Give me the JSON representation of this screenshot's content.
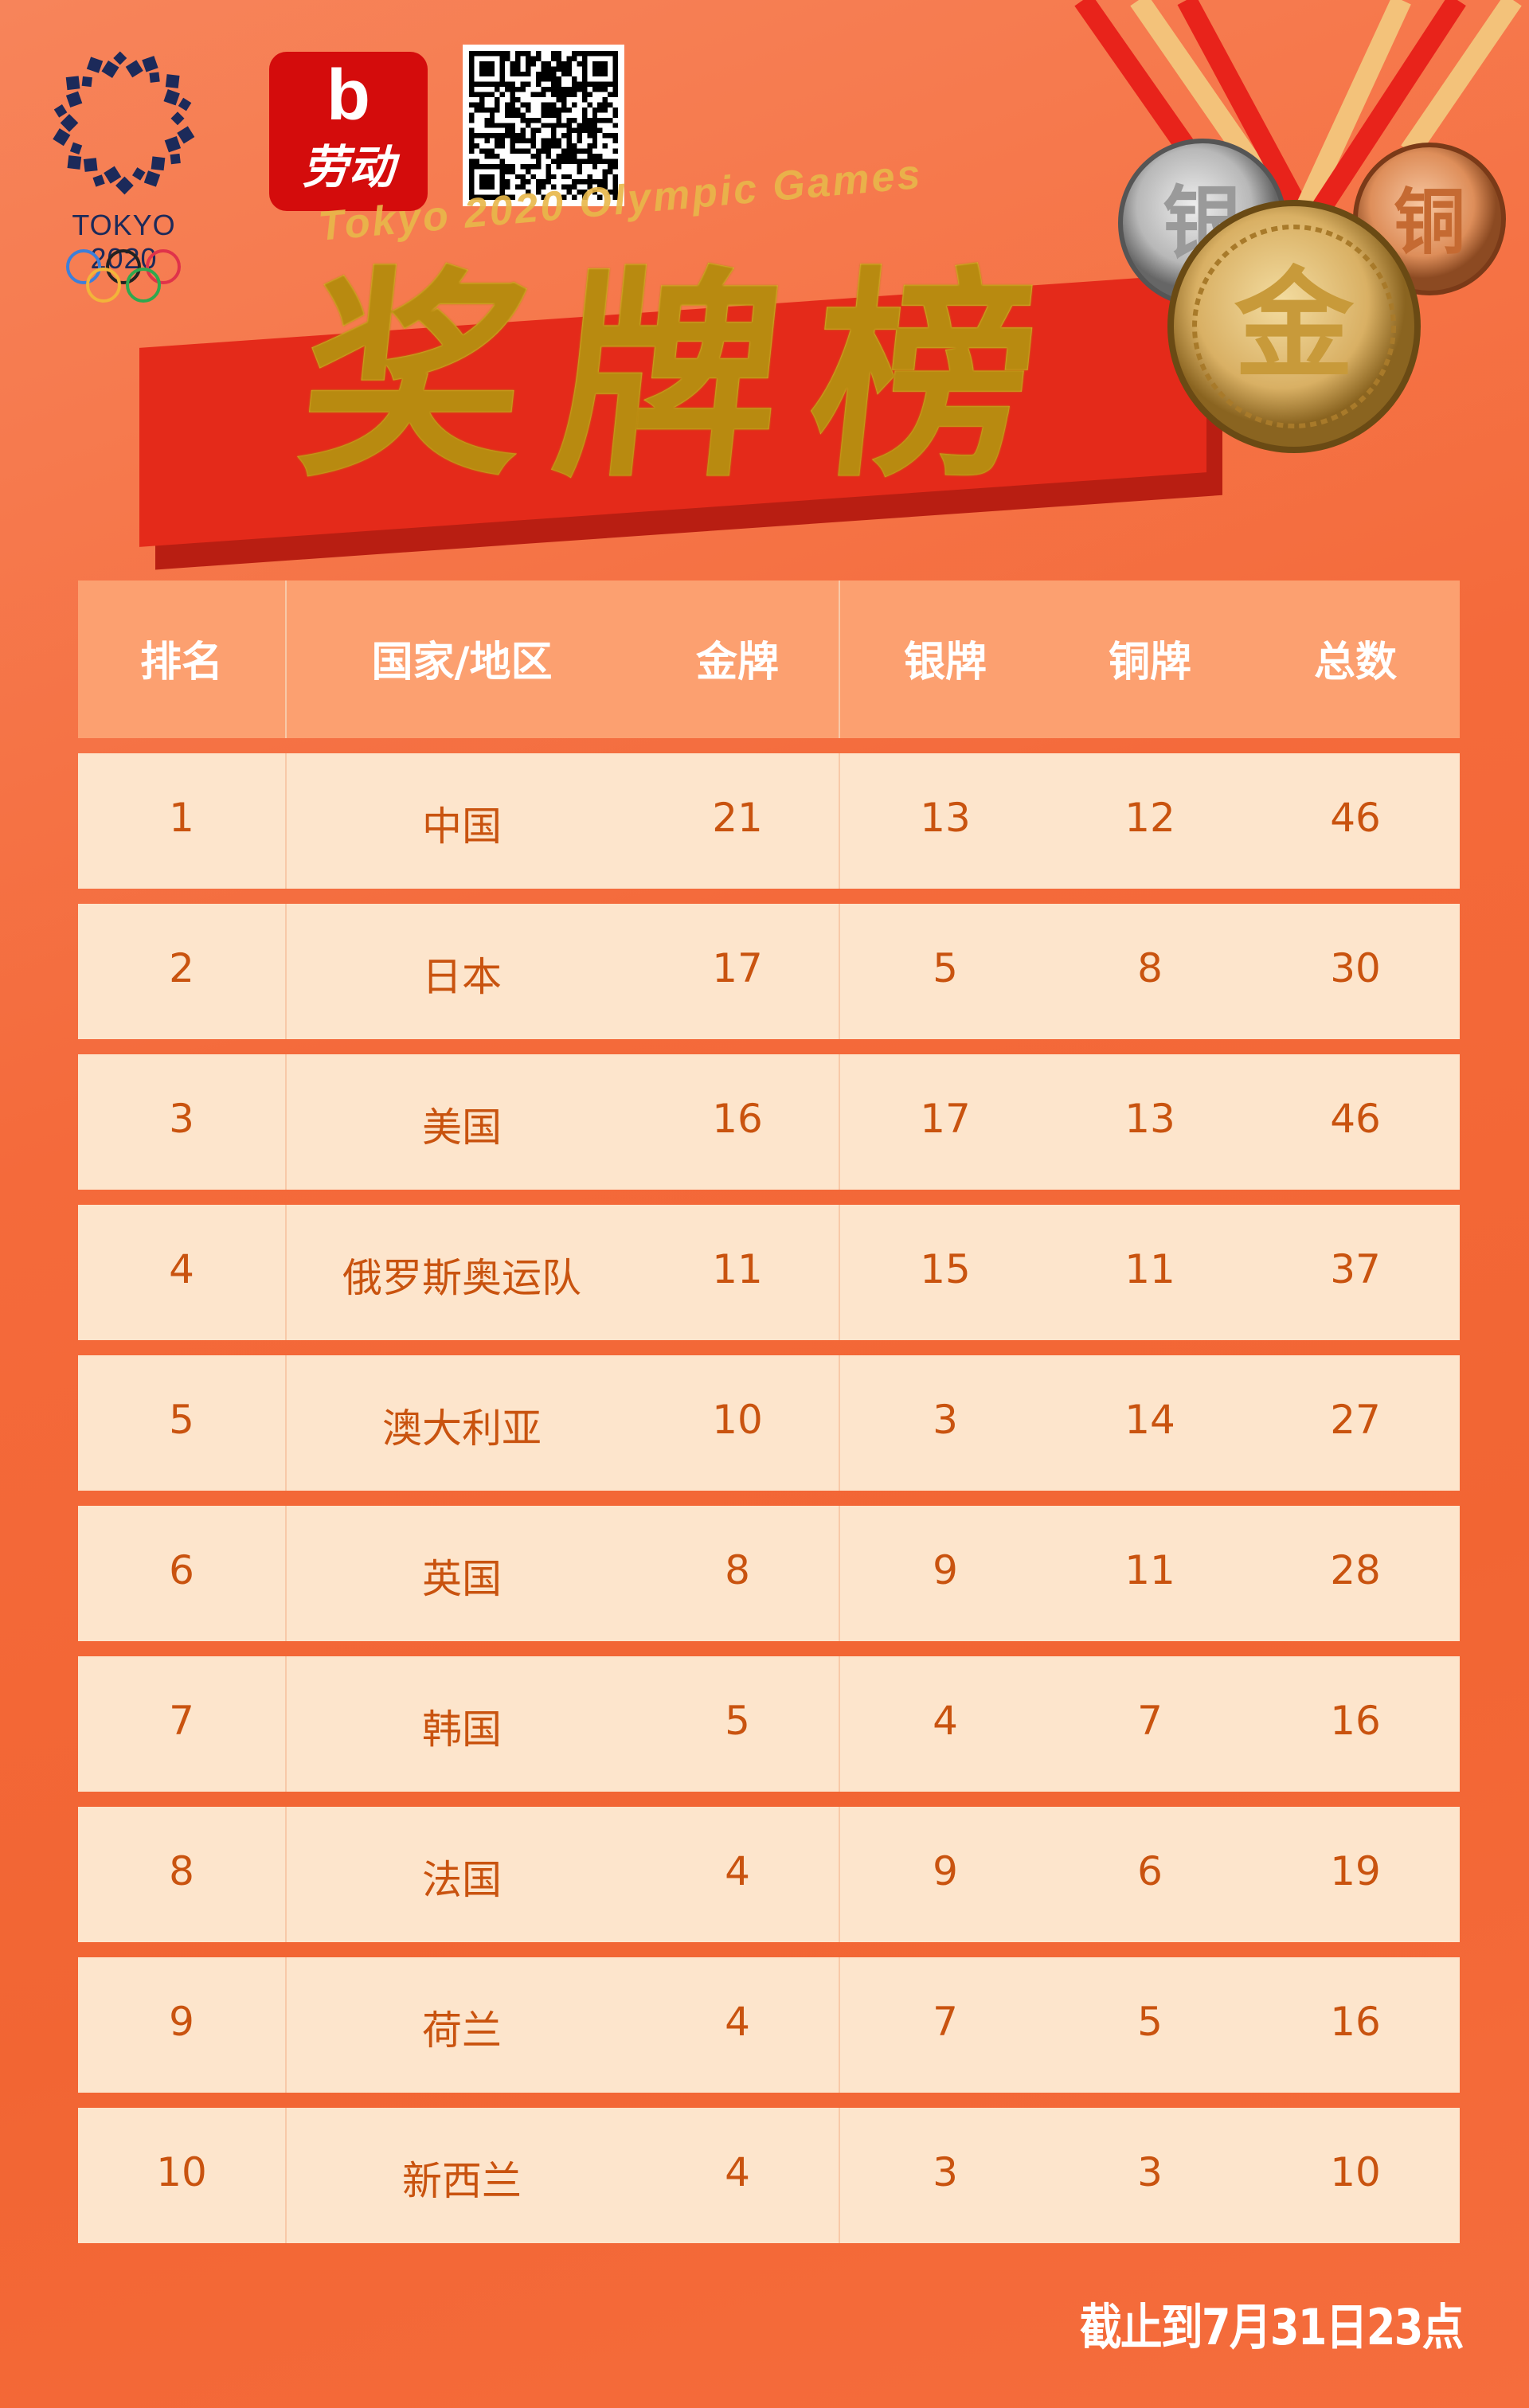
{
  "header": {
    "olympic_logo_text": "TOKYO 2020",
    "app_logo_letter": "b",
    "app_logo_name": "劳动",
    "subtitle": "Tokyo 2020 Olympic Games",
    "title": "奖牌榜",
    "medal_labels": {
      "gold": "金",
      "silver": "银",
      "bronze": "铜"
    }
  },
  "table": {
    "columns": [
      "排名",
      "国家/地区",
      "金牌",
      "银牌",
      "铜牌",
      "总数"
    ],
    "rows": [
      [
        "1",
        "中国",
        "21",
        "13",
        "12",
        "46"
      ],
      [
        "2",
        "日本",
        "17",
        "5",
        "8",
        "30"
      ],
      [
        "3",
        "美国",
        "16",
        "17",
        "13",
        "46"
      ],
      [
        "4",
        "俄罗斯奥运队",
        "11",
        "15",
        "11",
        "37"
      ],
      [
        "5",
        "澳大利亚",
        "10",
        "3",
        "14",
        "27"
      ],
      [
        "6",
        "英国",
        "8",
        "9",
        "11",
        "28"
      ],
      [
        "7",
        "韩国",
        "5",
        "4",
        "7",
        "16"
      ],
      [
        "8",
        "法国",
        "4",
        "9",
        "6",
        "19"
      ],
      [
        "9",
        "荷兰",
        "4",
        "7",
        "5",
        "16"
      ],
      [
        "10",
        "新西兰",
        "4",
        "3",
        "3",
        "10"
      ]
    ]
  },
  "footer": {
    "note": "截止到7月31日23点"
  },
  "colors": {
    "background": "#f46a3b",
    "header_row": "#fca070",
    "body_row": "#fde5cc",
    "body_text": "#c9530f",
    "title_gold": "#f2c230",
    "banner_red": "#e42a1a"
  }
}
